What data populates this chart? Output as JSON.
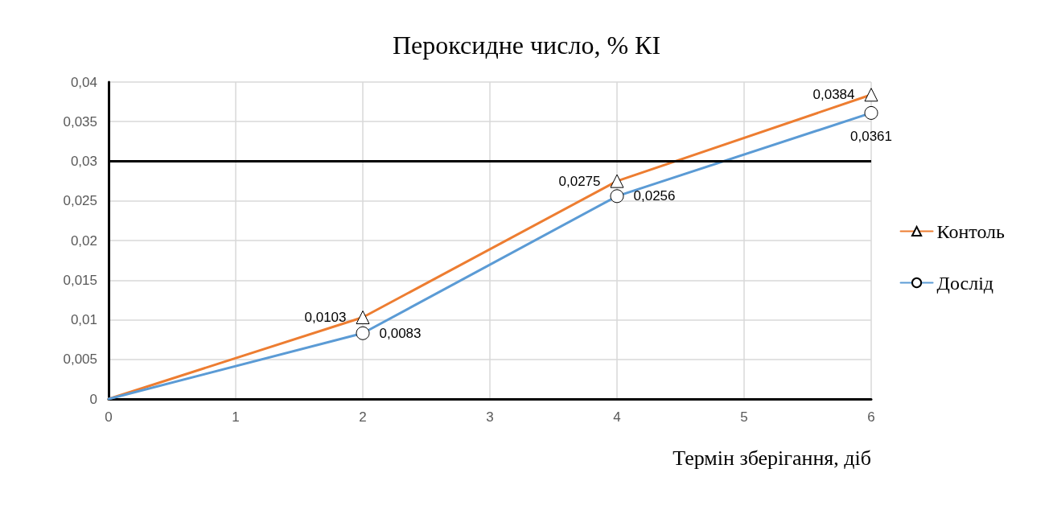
{
  "chart_data": {
    "type": "line",
    "title": "Пероксидне число, % КІ",
    "xlabel": "Термін зберігання, діб",
    "x": [
      0,
      2,
      4,
      6
    ],
    "series": [
      {
        "name": "Контоль",
        "color": "#ed7d31",
        "marker": "triangle",
        "values": [
          0,
          0.0103,
          0.0275,
          0.0384
        ],
        "value_labels": [
          null,
          "0,0103",
          "0,0275",
          "0,0384"
        ]
      },
      {
        "name": "Дослід",
        "color": "#5b9bd5",
        "marker": "circle",
        "values": [
          0,
          0.0083,
          0.0256,
          0.0361
        ],
        "value_labels": [
          null,
          "0,0083",
          "0,0256",
          "0,0361"
        ]
      }
    ],
    "xlim": [
      0,
      6
    ],
    "xticks": [
      0,
      1,
      2,
      3,
      4,
      5,
      6
    ],
    "ylim": [
      0,
      0.04
    ],
    "yticks": [
      0,
      {
        "value": 0.005,
        "label": "0,005"
      },
      {
        "value": 0.01,
        "label": "0,01"
      },
      {
        "value": 0.015,
        "label": "0,015"
      },
      {
        "value": 0.02,
        "label": "0,02"
      },
      {
        "value": 0.025,
        "label": "0,025"
      },
      {
        "value": 0.03,
        "label": "0,03"
      },
      {
        "value": 0.035,
        "label": "0,035"
      },
      {
        "value": 0.04,
        "label": "0,04"
      }
    ],
    "ref_lines": [
      {
        "axis": "y",
        "value": 0.03,
        "color": "#000000"
      }
    ],
    "grid": true,
    "legend": "right",
    "line_style": "solid"
  }
}
